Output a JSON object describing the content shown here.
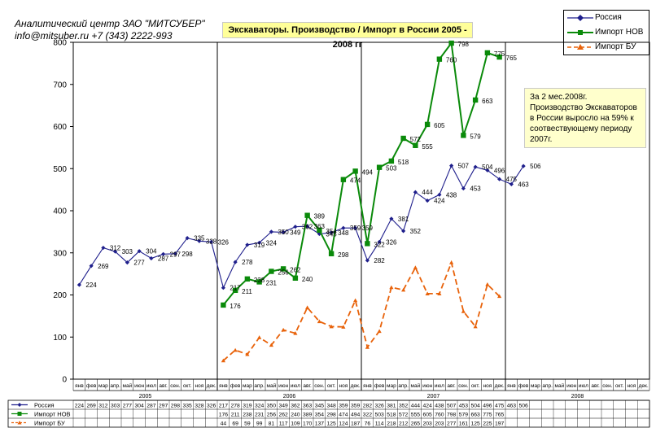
{
  "header": {
    "company_line1": "Аналитический центр ЗАО \"МИТСУБЕР\"",
    "company_line2": "info@mitsuber.ru +7 (343) 2222-993"
  },
  "note": {
    "text": "За 2 мес.2008г. Производство Экскаваторов в России выросло на 59% к соотвествующему периоду 2007г."
  },
  "colors": {
    "russia": "#1f1f8c",
    "import_new": "#0a8a0a",
    "import_used": "#e8620a",
    "title_bg": "#ffff99",
    "note_bg": "#ffffcc"
  },
  "chart_data": {
    "type": "line",
    "title": "Экскаваторы. Производство / Импорт  в России 2005 - 2008 гг",
    "ylim": [
      0,
      800
    ],
    "yticks": [
      0,
      100,
      200,
      300,
      400,
      500,
      600,
      700,
      800
    ],
    "grid": false,
    "legend_position": "top-right",
    "month_labels": [
      "янв",
      "фев",
      "мар",
      "апр.",
      "май",
      "июн",
      "июл",
      "авг.",
      "сен.",
      "окт.",
      "ноя",
      "дек."
    ],
    "years": [
      "2005",
      "2006",
      "2007",
      "2008"
    ],
    "series": [
      {
        "name": "Россия",
        "marker": "diamond",
        "line": "solid",
        "color": "#1f1f8c",
        "values": [
          224,
          269,
          312,
          303,
          277,
          304,
          287,
          297,
          298,
          335,
          328,
          326,
          217,
          278,
          319,
          324,
          350,
          349,
          362,
          363,
          345,
          348,
          359,
          359,
          282,
          326,
          381,
          352,
          444,
          424,
          438,
          507,
          453,
          504,
          496,
          475,
          463,
          506,
          null,
          null,
          null,
          null,
          null,
          null,
          null,
          null,
          null,
          null
        ]
      },
      {
        "name": "Импорт НОВ",
        "marker": "square",
        "line": "solid",
        "color": "#0a8a0a",
        "values": [
          null,
          null,
          null,
          null,
          null,
          null,
          null,
          null,
          null,
          null,
          null,
          null,
          176,
          211,
          238,
          231,
          256,
          262,
          240,
          389,
          354,
          298,
          474,
          494,
          322,
          503,
          518,
          572,
          555,
          605,
          760,
          798,
          579,
          663,
          775,
          765,
          null,
          null,
          null,
          null,
          null,
          null,
          null,
          null,
          null,
          null,
          null,
          null
        ]
      },
      {
        "name": "Импорт БУ",
        "marker": "triangle",
        "line": "dashed",
        "color": "#e8620a",
        "values": [
          null,
          null,
          null,
          null,
          null,
          null,
          null,
          null,
          null,
          null,
          null,
          null,
          44,
          69,
          59,
          99,
          81,
          117,
          109,
          170,
          137,
          125,
          124,
          187,
          76,
          114,
          218,
          212,
          265,
          203,
          203,
          277,
          161,
          125,
          225,
          197,
          null,
          null,
          null,
          null,
          null,
          null,
          null,
          null,
          null,
          null,
          null,
          null
        ]
      }
    ],
    "data_labels": {
      "Россия": [
        224,
        269,
        312,
        303,
        277,
        304,
        287,
        297,
        298,
        335,
        328,
        326,
        217,
        278,
        319,
        324,
        350,
        349,
        362,
        363,
        345,
        348,
        359,
        359,
        282,
        326,
        381,
        352,
        444,
        424,
        438,
        507,
        453,
        504,
        496,
        475,
        463,
        506
      ],
      "Импорт НОВ": [
        176,
        211,
        238,
        231,
        256,
        262,
        240,
        389,
        354,
        298,
        474,
        494,
        322,
        503,
        518,
        572,
        555,
        605,
        760,
        798,
        579,
        663,
        775,
        765
      ]
    }
  }
}
